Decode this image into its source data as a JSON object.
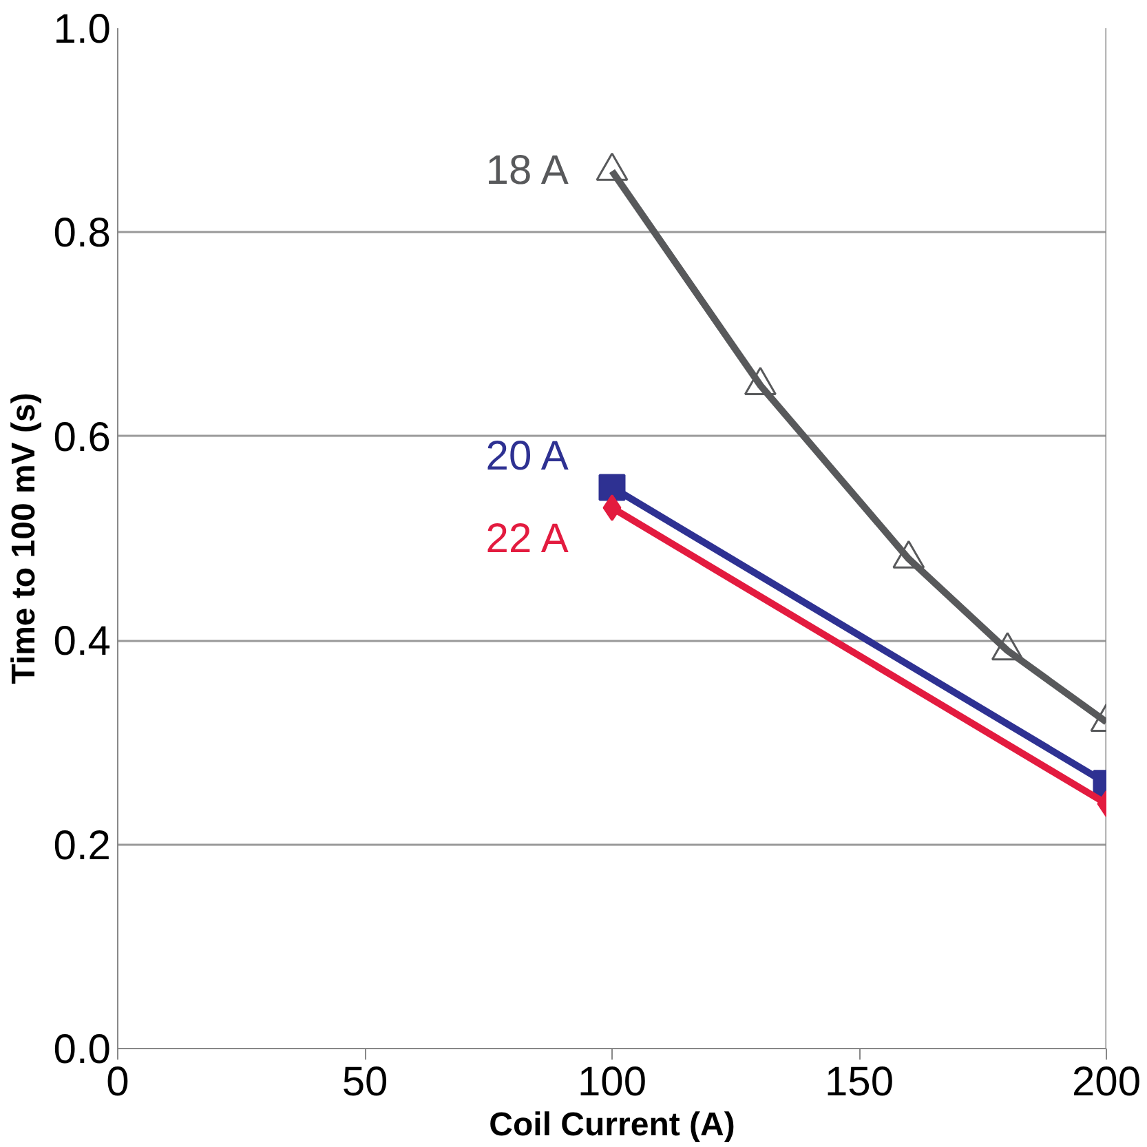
{
  "chart_data": {
    "type": "line",
    "xlabel": "Coil Current (A)",
    "ylabel": "Time to 100 mV (s)",
    "xlim": [
      0,
      200
    ],
    "ylim": [
      0,
      1.0
    ],
    "xticks": [
      0,
      50,
      100,
      150,
      200
    ],
    "yticks": [
      {
        "value": 0,
        "label": "0.0"
      },
      0.2,
      0.4,
      0.6,
      0.8,
      {
        "value": 1.0,
        "label": "1.0"
      }
    ],
    "grid": "y",
    "legend": false,
    "series": [
      {
        "name": "18 A",
        "color": "#58595b",
        "marker": "triangle",
        "x": [
          100,
          130,
          160,
          180,
          200
        ],
        "values": [
          0.86,
          0.65,
          0.48,
          0.39,
          0.32
        ]
      },
      {
        "name": "20 A",
        "color": "#2e3192",
        "marker": "square",
        "x": [
          100,
          200
        ],
        "values": [
          0.55,
          0.26
        ]
      },
      {
        "name": "22 A",
        "color": "#e31b3f",
        "marker": "diamond",
        "x": [
          100,
          200
        ],
        "values": [
          0.53,
          0.24
        ]
      }
    ]
  }
}
